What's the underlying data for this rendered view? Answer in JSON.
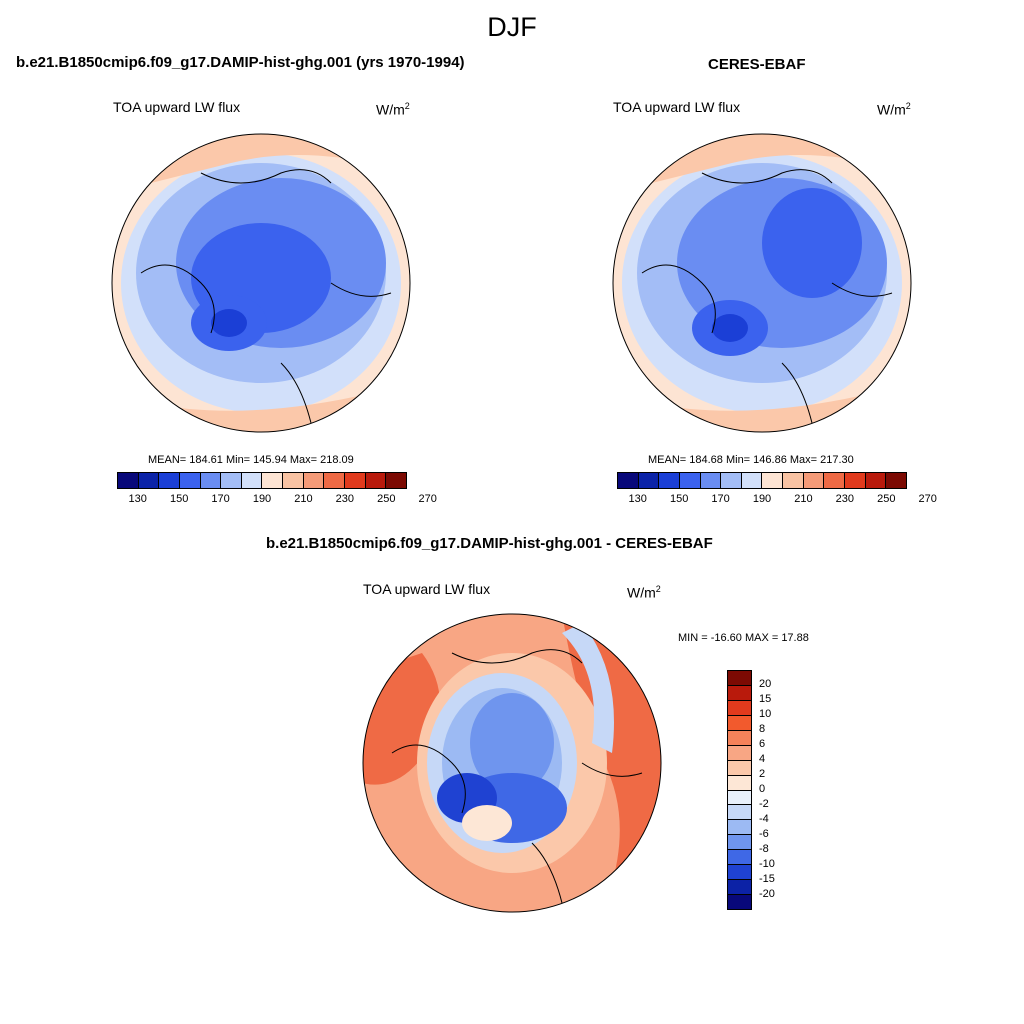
{
  "title": "DJF",
  "panels": [
    {
      "title": "b.e21.B1850cmip6.f09_g17.DAMIP-hist-ghg.001 (yrs 1970-1994)",
      "variable": "TOA upward LW flux",
      "units_base": "W/m",
      "units_exp": "2",
      "stats": "MEAN= 184.61  Min= 145.94  Max= 218.09"
    },
    {
      "title": "CERES-EBAF",
      "variable": "TOA upward LW flux",
      "units_base": "W/m",
      "units_exp": "2",
      "stats": "MEAN= 184.68  Min= 146.86  Max= 217.30"
    }
  ],
  "shared_colorbar": {
    "labels": [
      "130",
      "150",
      "170",
      "190",
      "210",
      "230",
      "250",
      "270"
    ],
    "colors": [
      "#08087a",
      "#0b23a8",
      "#1b3fd6",
      "#3b62ee",
      "#6a8df2",
      "#a3bdf6",
      "#d2e0fa",
      "#fde4d3",
      "#f9c3a3",
      "#f59b78",
      "#ef6a45",
      "#e13a1d",
      "#b91a0c",
      "#7c0a03"
    ]
  },
  "diff_panel": {
    "title": "b.e21.B1850cmip6.f09_g17.DAMIP-hist-ghg.001 - CERES-EBAF",
    "variable": "TOA upward LW flux",
    "units_base": "W/m",
    "units_exp": "2",
    "stats": "MIN = -16.60 MAX =  17.88",
    "colorbar": {
      "labels": [
        "20",
        "15",
        "10",
        "8",
        "6",
        "4",
        "2",
        "0",
        "-2",
        "-4",
        "-6",
        "-8",
        "-10",
        "-15",
        "-20"
      ],
      "colors": [
        "#7c0a03",
        "#b91a0c",
        "#e13a1d",
        "#f25a2d",
        "#f5825a",
        "#f8a684",
        "#fbc8aa",
        "#fde7d6",
        "#e8f0fb",
        "#c6d8f7",
        "#9cbaf3",
        "#6f95ee",
        "#3f68e6",
        "#1f42d2",
        "#0c22a6",
        "#08087a"
      ]
    }
  }
}
